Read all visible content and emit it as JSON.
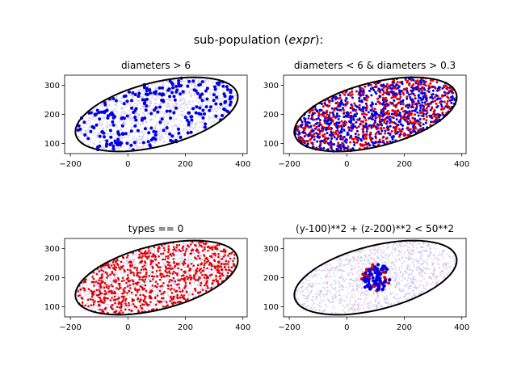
{
  "figure": {
    "suptitle_prefix": "sub-population (",
    "suptitle_expr": "expr",
    "suptitle_suffix": "):"
  },
  "chart_data": [
    {
      "type": "scatter",
      "title": "diameters > 6",
      "xlim": [
        -220,
        415
      ],
      "ylim": [
        65,
        335
      ],
      "xticks": [
        -200,
        0,
        200,
        400
      ],
      "yticks": [
        100,
        200,
        300
      ],
      "ellipse": {
        "center": [
          100,
          200
        ],
        "semi_axes": [
          290,
          110
        ],
        "angle_deg": 14
      },
      "background_color": "#b4b4f5",
      "background_alt_color": "#f5b4b4",
      "highlight_color": "#0000e0",
      "highlight": "scattered",
      "highlight_count": 260
    },
    {
      "type": "scatter",
      "title": "diameters < 6 & diameters > 0.3",
      "xlim": [
        -220,
        415
      ],
      "ylim": [
        65,
        335
      ],
      "xticks": [
        -200,
        0,
        200,
        400
      ],
      "yticks": [
        100,
        200,
        300
      ],
      "ellipse": {
        "center": [
          100,
          200
        ],
        "semi_axes": [
          290,
          110
        ],
        "angle_deg": 14
      },
      "highlight_colors": [
        "#0000e0",
        "#e00000"
      ],
      "highlight": "dense_mixed",
      "highlight_count": 1400
    },
    {
      "type": "scatter",
      "title": "types == 0",
      "xlim": [
        -220,
        415
      ],
      "ylim": [
        65,
        335
      ],
      "xticks": [
        -200,
        0,
        200,
        400
      ],
      "yticks": [
        100,
        200,
        300
      ],
      "ellipse": {
        "center": [
          100,
          200
        ],
        "semi_axes": [
          290,
          110
        ],
        "angle_deg": 14
      },
      "background_color": "#b4b4f5",
      "highlight_color": "#e00000",
      "highlight": "dense_single",
      "highlight_count": 900
    },
    {
      "type": "scatter",
      "title": "(y-100)**2 + (z-200)**2 < 50**2",
      "xlim": [
        -220,
        415
      ],
      "ylim": [
        65,
        335
      ],
      "xticks": [
        -200,
        0,
        200,
        400
      ],
      "yticks": [
        100,
        200,
        300
      ],
      "ellipse": {
        "center": [
          100,
          200
        ],
        "semi_axes": [
          290,
          110
        ],
        "angle_deg": 14
      },
      "background_color": "#b4b4f5",
      "background_alt_color": "#f5b4b4",
      "highlight_colors": [
        "#0000e0",
        "#e00000"
      ],
      "highlight": "circle",
      "highlight_circle": {
        "center": [
          100,
          200
        ],
        "radius": 50
      },
      "highlight_count": 110
    }
  ]
}
